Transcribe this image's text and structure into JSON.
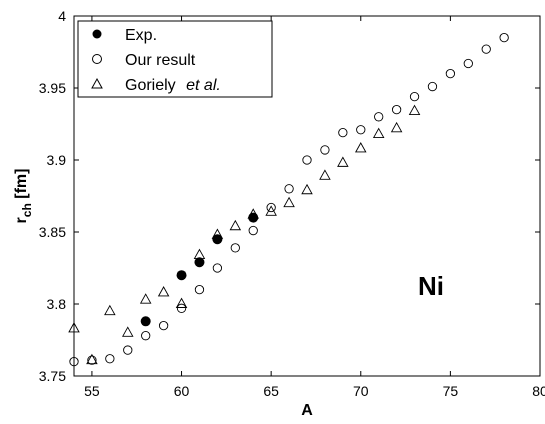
{
  "chart_data": {
    "type": "scatter",
    "xlabel": "A",
    "ylabel_main": "r",
    "ylabel_sub": "ch",
    "ylabel_unit": " [fm]",
    "xlim": [
      54,
      80
    ],
    "ylim": [
      3.75,
      4.0
    ],
    "xticks": [
      55,
      60,
      65,
      70,
      75,
      80
    ],
    "yticks": [
      3.75,
      3.8,
      3.85,
      3.9,
      3.95,
      4.0
    ],
    "ytick_labels": [
      "3.75",
      "3.8",
      "3.85",
      "3.9",
      "3.95",
      "4"
    ],
    "grid": false,
    "legend_position": "top-left",
    "annotation": "Ni",
    "series": [
      {
        "name": "Exp.",
        "marker": "filled-circle",
        "x": [
          58,
          60,
          61,
          62,
          64
        ],
        "y": [
          3.788,
          3.82,
          3.829,
          3.845,
          3.86
        ]
      },
      {
        "name": "Our result",
        "marker": "open-circle",
        "x": [
          54,
          55,
          56,
          57,
          58,
          59,
          60,
          61,
          62,
          63,
          64,
          65,
          66,
          67,
          68,
          69,
          70,
          71,
          72,
          73,
          74,
          75,
          76,
          77,
          78
        ],
        "y": [
          3.76,
          3.761,
          3.762,
          3.768,
          3.778,
          3.785,
          3.797,
          3.81,
          3.825,
          3.839,
          3.851,
          3.867,
          3.88,
          3.9,
          3.907,
          3.919,
          3.921,
          3.93,
          3.935,
          3.944,
          3.951,
          3.96,
          3.967,
          3.977,
          3.985
        ]
      },
      {
        "name_main": "Goriely ",
        "name_em": "et al.",
        "marker": "open-triangle",
        "x": [
          54,
          55,
          56,
          57,
          58,
          59,
          60,
          61,
          62,
          63,
          64,
          65,
          66,
          67,
          68,
          69,
          70,
          71,
          72,
          73
        ],
        "y": [
          3.783,
          3.761,
          3.795,
          3.78,
          3.803,
          3.808,
          3.8,
          3.834,
          3.848,
          3.854,
          3.862,
          3.864,
          3.87,
          3.879,
          3.889,
          3.898,
          3.908,
          3.918,
          3.922,
          3.934
        ]
      }
    ]
  }
}
